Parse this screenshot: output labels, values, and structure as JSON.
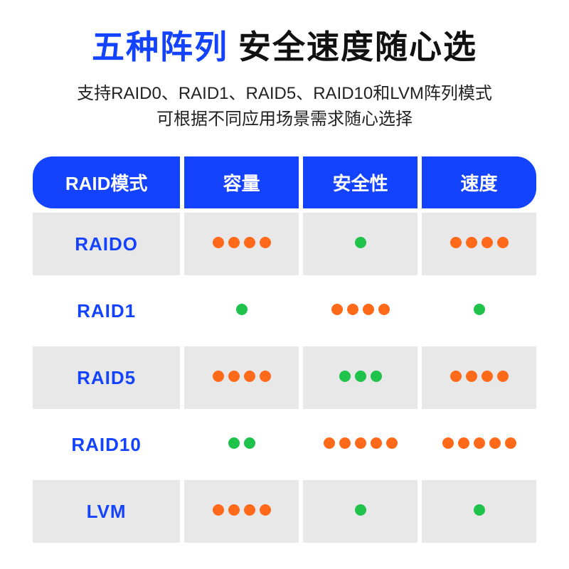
{
  "colors": {
    "accent_blue": "#1443ff",
    "title_black": "#111111",
    "subtitle_black": "#222222",
    "header_bg": "#1443ff",
    "header_text": "#ffffff",
    "row_odd_bg": "#e8e8e8",
    "row_even_bg": "#ffffff",
    "mode_text": "#1443ff",
    "dot_orange": "#ff6a1a",
    "dot_green": "#1fc24a"
  },
  "title": {
    "accent": "五种阵列",
    "main": "安全速度随心选"
  },
  "subtitle": {
    "line1": "支持RAID0、RAID1、RAID5、RAID10和LVM阵列模式",
    "line2": "可根据不同应用场景需求随心选择"
  },
  "table": {
    "headers": [
      "RAID模式",
      "容量",
      "安全性",
      "速度"
    ],
    "rows": [
      {
        "mode": "RAIDO",
        "capacity": {
          "count": 4,
          "color": "orange"
        },
        "safety": {
          "count": 1,
          "color": "green"
        },
        "speed": {
          "count": 4,
          "color": "orange"
        }
      },
      {
        "mode": "RAID1",
        "capacity": {
          "count": 1,
          "color": "green"
        },
        "safety": {
          "count": 4,
          "color": "orange"
        },
        "speed": {
          "count": 1,
          "color": "green"
        }
      },
      {
        "mode": "RAID5",
        "capacity": {
          "count": 4,
          "color": "orange"
        },
        "safety": {
          "count": 3,
          "color": "green"
        },
        "speed": {
          "count": 4,
          "color": "orange"
        }
      },
      {
        "mode": "RAID10",
        "capacity": {
          "count": 2,
          "color": "green"
        },
        "safety": {
          "count": 5,
          "color": "orange"
        },
        "speed": {
          "count": 5,
          "color": "orange"
        }
      },
      {
        "mode": "LVM",
        "capacity": {
          "count": 4,
          "color": "orange"
        },
        "safety": {
          "count": 1,
          "color": "green"
        },
        "speed": {
          "count": 1,
          "color": "green"
        }
      }
    ]
  }
}
